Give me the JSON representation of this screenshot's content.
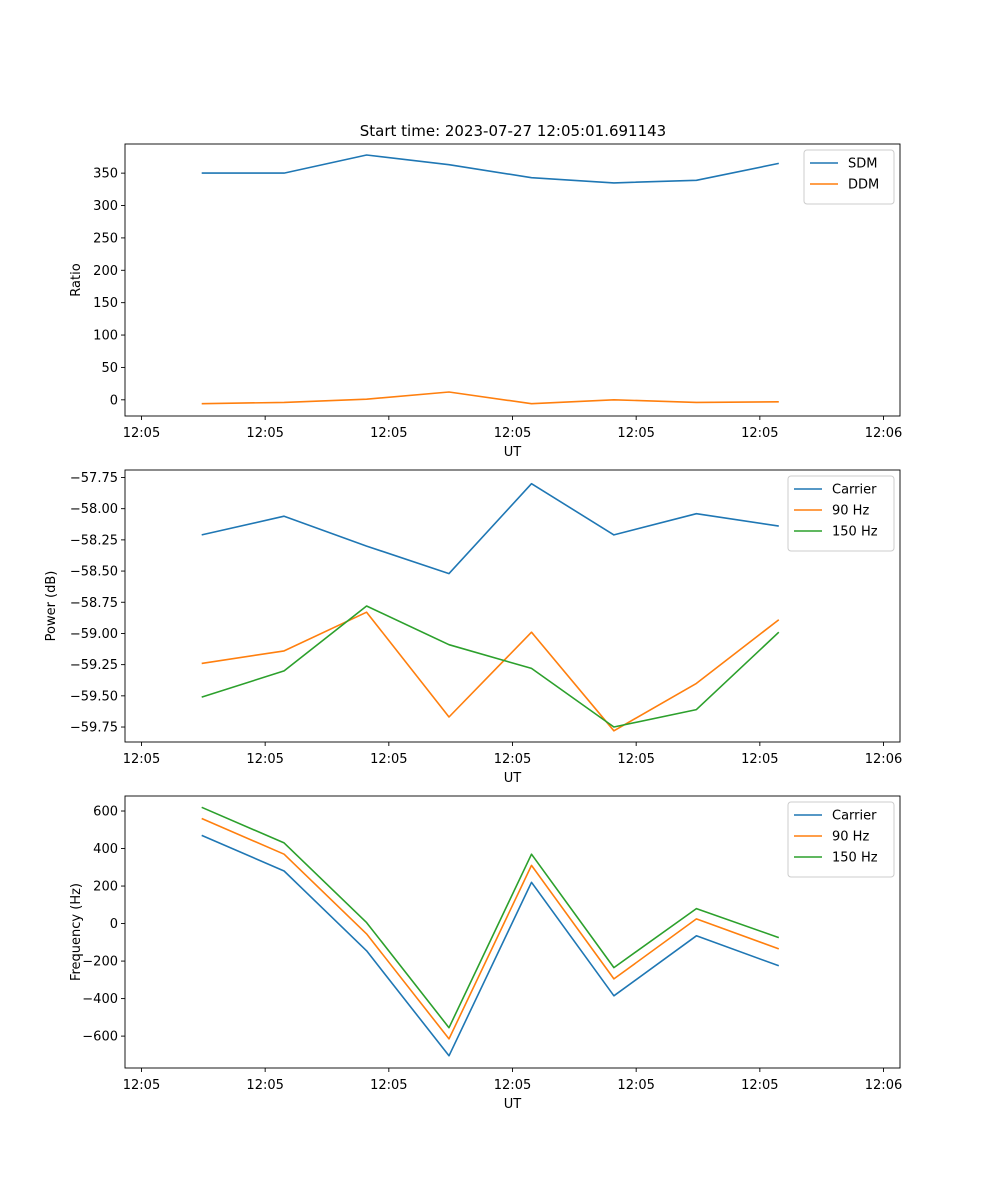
{
  "figure_title": "Start time: 2023-07-27 12:05:01.691143",
  "colors": {
    "c0": "#1f77b4",
    "c1": "#ff7f0e",
    "c2": "#2ca02c"
  },
  "chart_data": [
    {
      "type": "line",
      "title": "Start time: 2023-07-27 12:05:01.691143",
      "xlabel": "UT",
      "ylabel": "Ratio",
      "x": [
        0.73,
        1.73,
        2.73,
        3.73,
        4.73,
        5.73,
        6.73,
        7.73
      ],
      "xlim": [
        -0.2,
        9.2
      ],
      "xticks": [
        0,
        1.5,
        3,
        4.5,
        6,
        7.5,
        9
      ],
      "xtick_labels": [
        "12:05",
        "12:05",
        "12:05",
        "12:05",
        "12:05",
        "12:05",
        "12:06"
      ],
      "ylim": [
        -25,
        395
      ],
      "yticks": [
        0,
        50,
        100,
        150,
        200,
        250,
        300,
        350
      ],
      "ytick_labels": [
        "0",
        "50",
        "100",
        "150",
        "200",
        "250",
        "300",
        "350"
      ],
      "legend": "upper right",
      "series": [
        {
          "name": "SDM",
          "color": "#1f77b4",
          "values": [
            350,
            350,
            378,
            363,
            343,
            335,
            339,
            365
          ]
        },
        {
          "name": "DDM",
          "color": "#ff7f0e",
          "values": [
            -6,
            -4,
            1,
            12,
            -6,
            0,
            -4,
            -3
          ]
        }
      ]
    },
    {
      "type": "line",
      "title": "",
      "xlabel": "UT",
      "ylabel": "Power (dB)",
      "x": [
        0.73,
        1.73,
        2.73,
        3.73,
        4.73,
        5.73,
        6.73,
        7.73
      ],
      "xlim": [
        -0.2,
        9.2
      ],
      "xticks": [
        0,
        1.5,
        3,
        4.5,
        6,
        7.5,
        9
      ],
      "xtick_labels": [
        "12:05",
        "12:05",
        "12:05",
        "12:05",
        "12:05",
        "12:05",
        "12:06"
      ],
      "ylim": [
        -59.87,
        -57.69
      ],
      "yticks": [
        -59.75,
        -59.5,
        -59.25,
        -59.0,
        -58.75,
        -58.5,
        -58.25,
        -58.0,
        -57.75
      ],
      "ytick_labels": [
        "−59.75",
        "−59.50",
        "−59.25",
        "−59.00",
        "−58.75",
        "−58.50",
        "−58.25",
        "−58.00",
        "−57.75"
      ],
      "legend": "upper right",
      "series": [
        {
          "name": "Carrier",
          "color": "#1f77b4",
          "values": [
            -58.21,
            -58.06,
            -58.3,
            -58.52,
            -57.8,
            -58.21,
            -58.04,
            -58.14
          ]
        },
        {
          "name": "90 Hz",
          "color": "#ff7f0e",
          "values": [
            -59.24,
            -59.14,
            -58.83,
            -59.67,
            -58.99,
            -59.78,
            -59.4,
            -58.89
          ]
        },
        {
          "name": "150 Hz",
          "color": "#2ca02c",
          "values": [
            -59.51,
            -59.3,
            -58.78,
            -59.09,
            -59.28,
            -59.75,
            -59.61,
            -58.99
          ]
        }
      ]
    },
    {
      "type": "line",
      "title": "",
      "xlabel": "UT",
      "ylabel": "Frequency (Hz)",
      "x": [
        0.73,
        1.73,
        2.73,
        3.73,
        4.73,
        5.73,
        6.73,
        7.73
      ],
      "xlim": [
        -0.2,
        9.2
      ],
      "xticks": [
        0,
        1.5,
        3,
        4.5,
        6,
        7.5,
        9
      ],
      "xtick_labels": [
        "12:05",
        "12:05",
        "12:05",
        "12:05",
        "12:05",
        "12:05",
        "12:06"
      ],
      "ylim": [
        -770,
        680
      ],
      "yticks": [
        -600,
        -400,
        -200,
        0,
        200,
        400,
        600
      ],
      "ytick_labels": [
        "−600",
        "−400",
        "−200",
        "0",
        "200",
        "400",
        "600"
      ],
      "legend": "upper right",
      "series": [
        {
          "name": "Carrier",
          "color": "#1f77b4",
          "values": [
            470,
            280,
            -145,
            -705,
            220,
            -385,
            -65,
            -225
          ]
        },
        {
          "name": "90 Hz",
          "color": "#ff7f0e",
          "values": [
            560,
            370,
            -55,
            -615,
            310,
            -295,
            25,
            -135
          ]
        },
        {
          "name": "150 Hz",
          "color": "#2ca02c",
          "values": [
            620,
            430,
            5,
            -555,
            370,
            -235,
            80,
            -75
          ]
        }
      ]
    }
  ]
}
